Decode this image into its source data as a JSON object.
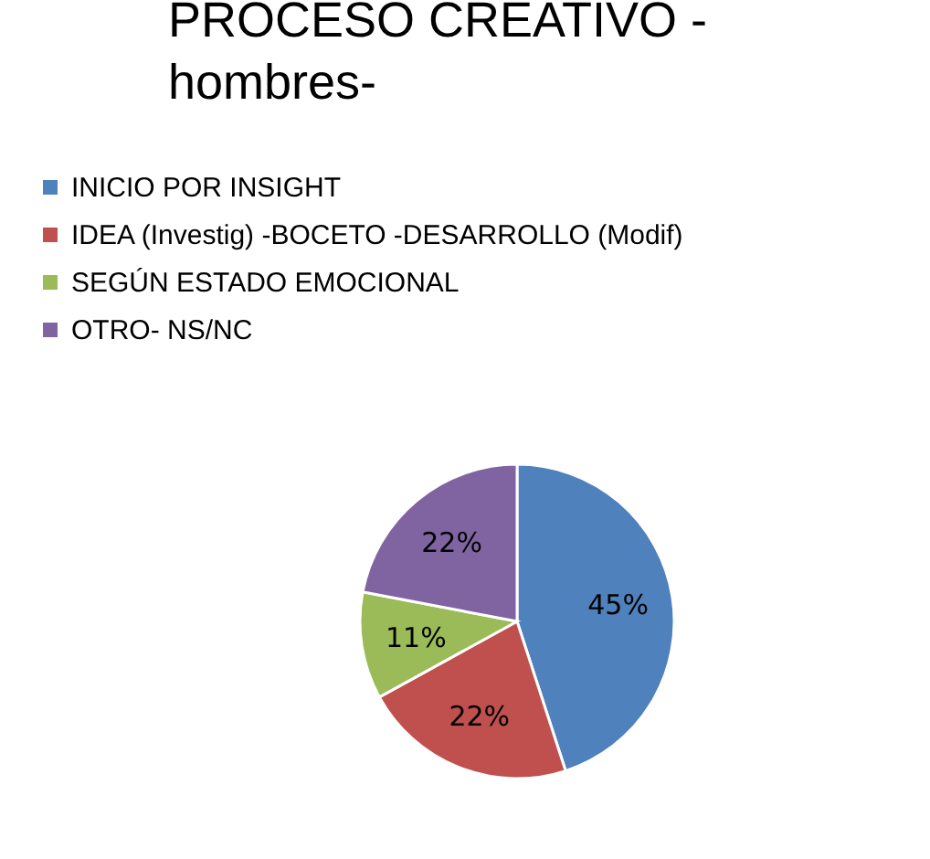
{
  "chart_data": {
    "type": "pie",
    "title": "PROCESO CREATIVO -\nhombres-",
    "categories": [
      "INICIO POR INSIGHT",
      "IDEA (Investig) -BOCETO -DESARROLLO (Modif)",
      "SEGÚN ESTADO EMOCIONAL",
      "OTRO- NS/NC"
    ],
    "values": [
      45,
      22,
      11,
      22
    ],
    "colors": [
      "#4f81bd",
      "#c0504d",
      "#9bbb59",
      "#8064a2"
    ],
    "value_labels": [
      "45%",
      "22%",
      "11%",
      "22%"
    ],
    "legend": "top left"
  }
}
